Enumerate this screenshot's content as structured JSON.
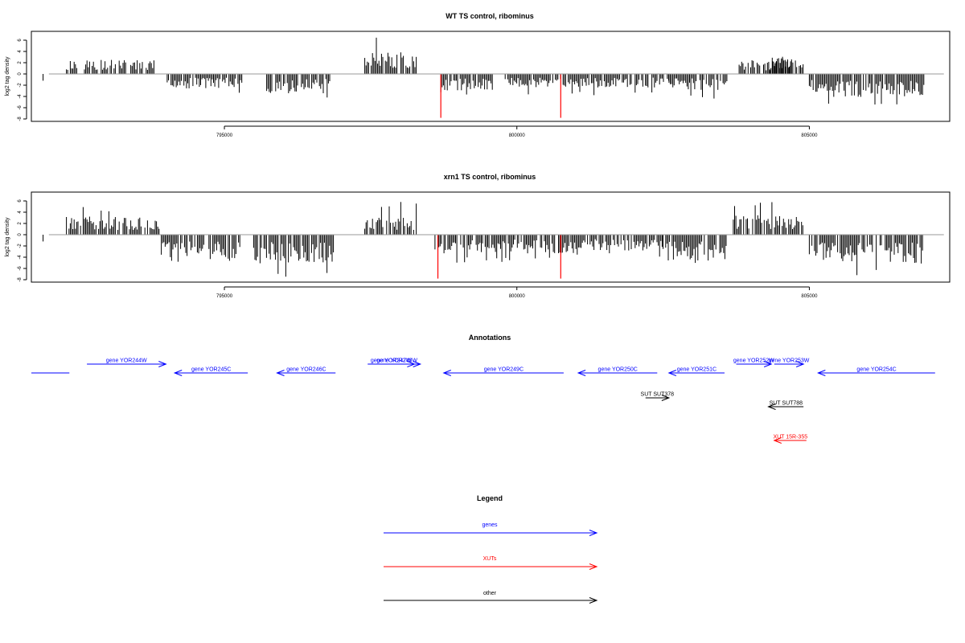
{
  "chart_data": [
    {
      "type": "bar",
      "title": "WT TS control, ribominus",
      "ylabel": "log2 tag density",
      "xlabel": "",
      "xlim": [
        791700,
        807400
      ],
      "ylim": [
        -8,
        7
      ],
      "x_ticks": [
        795000,
        800000,
        805000
      ],
      "y_ticks": [
        -8,
        -6,
        -4,
        -2,
        0,
        2,
        4,
        6
      ],
      "grid": false,
      "colors": {
        "bars": "#000000",
        "highlight": "#ff0000",
        "baseline": "#999999"
      },
      "segments": [
        {
          "strand": "+",
          "start": 792300,
          "end": 793800,
          "mean": 1.9,
          "peak": 3.1
        },
        {
          "strand": "-",
          "start": 794000,
          "end": 795300,
          "mean": -1.9,
          "peak": -3.6
        },
        {
          "strand": "-",
          "start": 795700,
          "end": 796800,
          "mean": -2.6,
          "peak": -4.8
        },
        {
          "strand": "+",
          "start": 797400,
          "end": 798300,
          "mean": 2.9,
          "peak": 6.5
        },
        {
          "strand": "-",
          "start": 798700,
          "end": 799600,
          "mean": -2.2,
          "peak": -3.8
        },
        {
          "strand": "-",
          "start": 799800,
          "end": 802600,
          "mean": -1.8,
          "peak": -3.9
        },
        {
          "strand": "-",
          "start": 802600,
          "end": 803600,
          "mean": -2.1,
          "peak": -4.5
        },
        {
          "strand": "+",
          "start": 803800,
          "end": 804700,
          "mean": 1.8,
          "peak": 3.0
        },
        {
          "strand": "+",
          "start": 804300,
          "end": 804900,
          "mean": 2.3,
          "peak": 4.0
        },
        {
          "strand": "-",
          "start": 805000,
          "end": 807000,
          "mean": -3.1,
          "peak": -5.8
        }
      ],
      "highlight_lines": [
        {
          "x": 798700,
          "y": -7.8
        },
        {
          "x": 800750,
          "y": -7.8
        }
      ]
    },
    {
      "type": "bar",
      "title": "xrn1 TS control, ribominus",
      "ylabel": "log2 tag density",
      "xlabel": "",
      "xlim": [
        791700,
        807400
      ],
      "ylim": [
        -8,
        7
      ],
      "x_ticks": [
        795000,
        800000,
        805000
      ],
      "y_ticks": [
        -8,
        -6,
        -4,
        -2,
        0,
        2,
        4,
        6
      ],
      "grid": false,
      "colors": {
        "bars": "#000000",
        "highlight": "#ff0000",
        "baseline": "#999999"
      },
      "segments": [
        {
          "strand": "+",
          "start": 792300,
          "end": 793900,
          "mean": 2.4,
          "peak": 5.0
        },
        {
          "strand": "-",
          "start": 793900,
          "end": 795300,
          "mean": -3.2,
          "peak": -5.0
        },
        {
          "strand": "-",
          "start": 795500,
          "end": 796900,
          "mean": -3.8,
          "peak": -7.5
        },
        {
          "strand": "+",
          "start": 797400,
          "end": 798300,
          "mean": 2.4,
          "peak": 6.0
        },
        {
          "strand": "-",
          "start": 798600,
          "end": 800900,
          "mean": -2.5,
          "peak": -5.0
        },
        {
          "strand": "-",
          "start": 800900,
          "end": 802500,
          "mean": -2.1,
          "peak": -3.9
        },
        {
          "strand": "-",
          "start": 802500,
          "end": 803600,
          "mean": -3.5,
          "peak": -5.7
        },
        {
          "strand": "+",
          "start": 803700,
          "end": 804900,
          "mean": 2.6,
          "peak": 5.8
        },
        {
          "strand": "-",
          "start": 805000,
          "end": 807000,
          "mean": -3.8,
          "peak": -7.2
        }
      ],
      "highlight_lines": [
        {
          "x": 798650,
          "y": -7.8
        },
        {
          "x": 800750,
          "y": -7.8
        }
      ]
    }
  ],
  "annotations": {
    "title": "Annotations",
    "xlim": [
      791700,
      807400
    ],
    "features": [
      {
        "label": "",
        "kind": "gene",
        "start": 791700,
        "end": 792350,
        "dir": "none",
        "row": 1
      },
      {
        "label": "gene YOR244W",
        "kind": "gene",
        "start": 792650,
        "end": 794000,
        "dir": "right",
        "row": 0
      },
      {
        "label": "gene YOR245C",
        "kind": "gene",
        "start": 794150,
        "end": 795400,
        "dir": "left",
        "row": 1
      },
      {
        "label": "gene YOR246C",
        "kind": "gene",
        "start": 795900,
        "end": 796900,
        "dir": "left",
        "row": 1
      },
      {
        "label": "gene YOR247W",
        "kind": "gene",
        "start": 797450,
        "end": 798250,
        "dir": "right",
        "row": 0
      },
      {
        "label": "gene YOR248W",
        "kind": "gene",
        "start": 797550,
        "end": 798350,
        "dir": "right",
        "row": 0
      },
      {
        "label": "gene YOR249C",
        "kind": "gene",
        "start": 798750,
        "end": 800800,
        "dir": "left",
        "row": 1
      },
      {
        "label": "gene YOR250C",
        "kind": "gene",
        "start": 801050,
        "end": 802400,
        "dir": "left",
        "row": 1
      },
      {
        "label": "gene YOR251C",
        "kind": "gene",
        "start": 802600,
        "end": 803550,
        "dir": "left",
        "row": 1
      },
      {
        "label": "gene YOR252W",
        "kind": "gene",
        "start": 803750,
        "end": 804350,
        "dir": "right",
        "row": 0
      },
      {
        "label": "gene YOR253W",
        "kind": "gene",
        "start": 804400,
        "end": 804900,
        "dir": "right",
        "row": 0
      },
      {
        "label": "gene YOR254C",
        "kind": "gene",
        "start": 805150,
        "end": 807150,
        "dir": "left",
        "row": 1
      },
      {
        "label": "SUT SUT378",
        "kind": "other",
        "start": 802200,
        "end": 802600,
        "dir": "right",
        "row": 2
      },
      {
        "label": "SUT SUT788",
        "kind": "other",
        "start": 804300,
        "end": 804900,
        "dir": "left",
        "row": 3
      },
      {
        "label": "XUT 15R-355",
        "kind": "xut",
        "start": 804400,
        "end": 804950,
        "dir": "left",
        "row": 4
      }
    ]
  },
  "legend": {
    "title": "Legend",
    "items": [
      {
        "label": "genes",
        "color": "#0000ff"
      },
      {
        "label": "XUTs",
        "color": "#ff0000"
      },
      {
        "label": "other",
        "color": "#000000"
      }
    ]
  },
  "colors": {
    "gene": "#0000ff",
    "xut": "#ff0000",
    "other": "#000000"
  }
}
